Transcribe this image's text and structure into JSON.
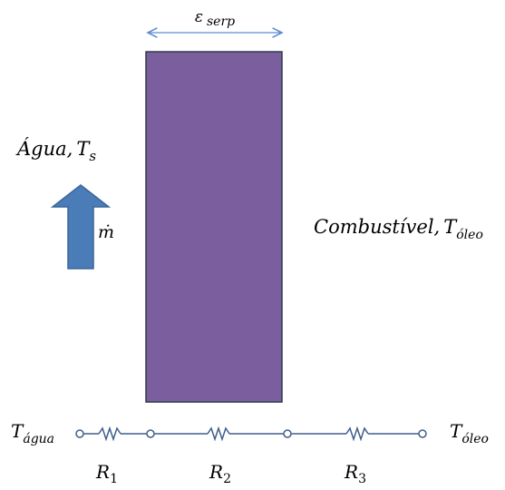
{
  "wall": {
    "thickness_symbol": "ε",
    "thickness_subscript": "serp",
    "color": "#7B5E9E",
    "border_color": "#2F3B4C"
  },
  "water": {
    "name": "Água",
    "temp_symbol": "T",
    "temp_subscript": "s"
  },
  "flow": {
    "symbol": "ṁ",
    "arrow_color": "#4A7DB8"
  },
  "fuel": {
    "name": "Combustível",
    "temp_symbol": "T",
    "temp_subscript": "óleo"
  },
  "circuit": {
    "left_node": {
      "symbol": "T",
      "subscript": "água"
    },
    "right_node": {
      "symbol": "T",
      "subscript": "óleo"
    },
    "resistors": [
      {
        "symbol": "R",
        "subscript": "1"
      },
      {
        "symbol": "R",
        "subscript": "2"
      },
      {
        "symbol": "R",
        "subscript": "3"
      }
    ],
    "wire_color": "#3E5F8A"
  },
  "dimension_arrow_color": "#5B8CCF"
}
